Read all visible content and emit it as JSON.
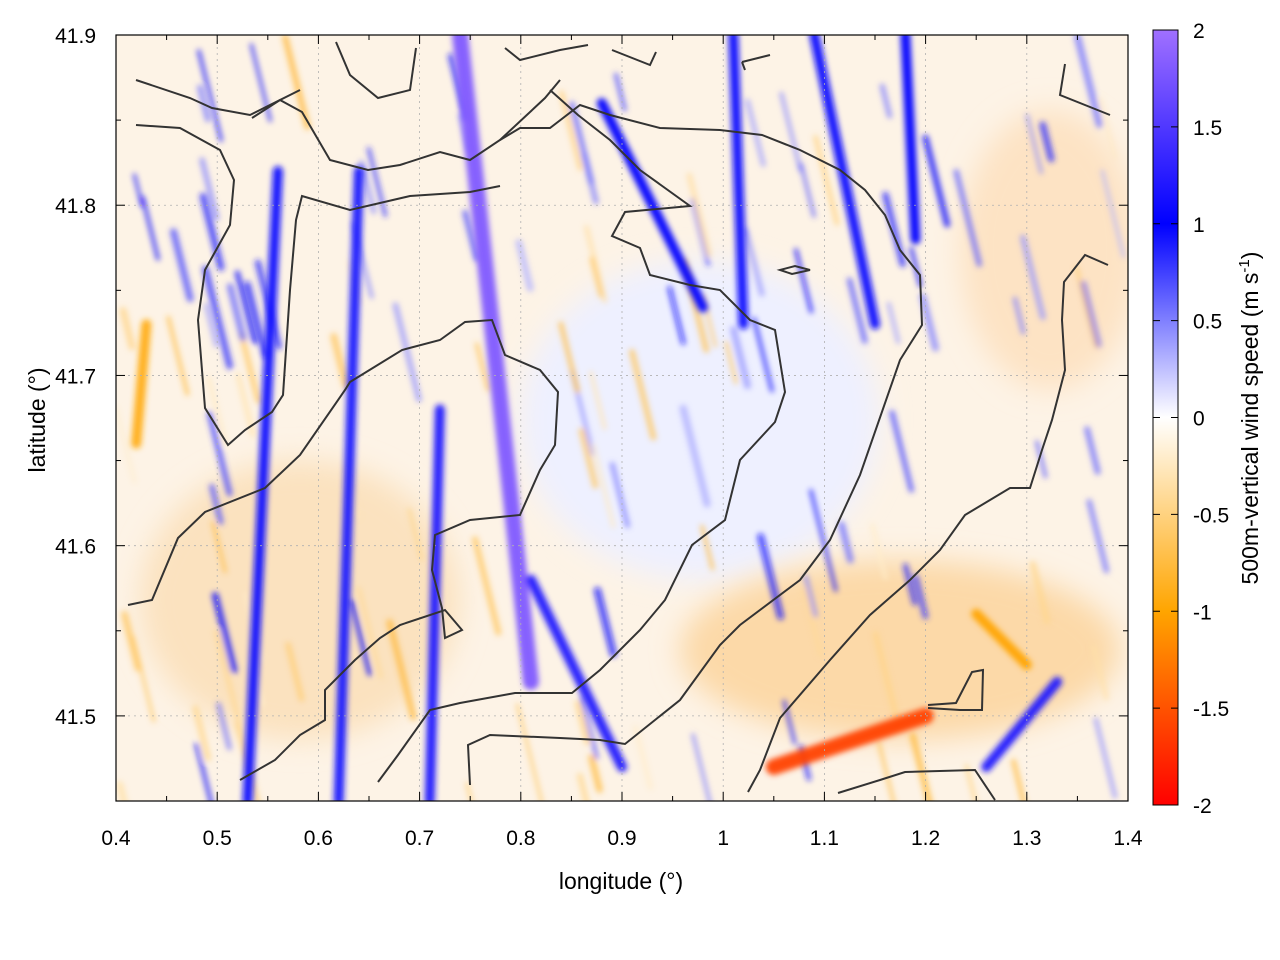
{
  "chart_data": {
    "type": "heatmap",
    "title": "",
    "xlabel": "longitude (°)",
    "ylabel": "latitude (°)",
    "colorbar_label": "500m-vertical wind speed (m s",
    "colorbar_label_sup": "-1",
    "colorbar_label_end": ")",
    "xlim": [
      0.4,
      1.4
    ],
    "ylim": [
      41.45,
      41.9
    ],
    "clim": [
      -2,
      2
    ],
    "x_ticks": [
      "0.4",
      "0.5",
      "0.6",
      "0.7",
      "0.8",
      "0.9",
      "1",
      "1.1",
      "1.2",
      "1.3",
      "1.4"
    ],
    "y_ticks": [
      "41.5",
      "41.6",
      "41.7",
      "41.8",
      "41.9"
    ],
    "colorbar_ticks": [
      "2",
      "1.5",
      "1",
      "0.5",
      "0",
      "-0.5",
      "-1",
      "-1.5",
      "-2"
    ],
    "colormap": [
      "#ff0000",
      "#ffa500",
      "#ffffff",
      "#0000ff",
      "#a070ff"
    ],
    "grid": true,
    "contour_color": "#333333",
    "updraft_bands": [
      {
        "lon_start": 0.74,
        "lat_start": 41.9,
        "lon_end": 0.81,
        "lat_end": 41.52,
        "value": 1.8
      },
      {
        "lon_start": 0.72,
        "lat_start": 41.68,
        "lon_end": 0.71,
        "lat_end": 41.45,
        "value": 1.2
      },
      {
        "lon_start": 0.56,
        "lat_start": 41.82,
        "lon_end": 0.53,
        "lat_end": 41.45,
        "value": 1.1
      },
      {
        "lon_start": 0.64,
        "lat_start": 41.82,
        "lon_end": 0.62,
        "lat_end": 41.45,
        "value": 0.9
      },
      {
        "lon_start": 0.81,
        "lat_start": 41.58,
        "lon_end": 0.9,
        "lat_end": 41.47,
        "value": 1.2
      },
      {
        "lon_start": 0.88,
        "lat_start": 41.86,
        "lon_end": 0.98,
        "lat_end": 41.74,
        "value": 1.0
      },
      {
        "lon_start": 1.01,
        "lat_start": 41.9,
        "lon_end": 1.02,
        "lat_end": 41.73,
        "value": 1.1
      },
      {
        "lon_start": 1.09,
        "lat_start": 41.9,
        "lon_end": 1.15,
        "lat_end": 41.73,
        "value": 1.1
      },
      {
        "lon_start": 1.18,
        "lat_start": 41.9,
        "lon_end": 1.19,
        "lat_end": 41.78,
        "value": 1.0
      },
      {
        "lon_start": 1.26,
        "lat_start": 41.47,
        "lon_end": 1.33,
        "lat_end": 41.52,
        "value": 1.2
      }
    ],
    "downdraft_bands": [
      {
        "lon_start": 1.05,
        "lat_start": 41.47,
        "lon_end": 1.2,
        "lat_end": 41.5,
        "value": -1.6
      },
      {
        "lon_start": 1.25,
        "lat_start": 41.56,
        "lon_end": 1.3,
        "lat_end": 41.53,
        "value": -1.0
      },
      {
        "lon_start": 0.43,
        "lat_start": 41.73,
        "lon_end": 0.42,
        "lat_end": 41.66,
        "value": -0.9
      }
    ]
  }
}
